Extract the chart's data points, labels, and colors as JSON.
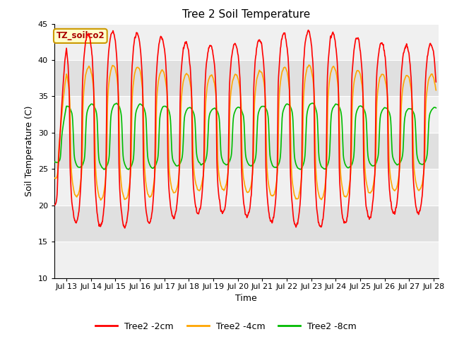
{
  "title": "Tree 2 Soil Temperature",
  "xlabel": "Time",
  "ylabel": "Soil Temperature (C)",
  "ylim": [
    10,
    45
  ],
  "xlim_days": [
    12.5,
    28.2
  ],
  "tick_days": [
    13,
    14,
    15,
    16,
    17,
    18,
    19,
    20,
    21,
    22,
    23,
    24,
    25,
    26,
    27,
    28
  ],
  "tick_labels": [
    "Jul 13",
    "Jul 14",
    "Jul 15",
    "Jul 16",
    "Jul 17",
    "Jul 18",
    "Jul 19",
    "Jul 20",
    "Jul 21",
    "Jul 22",
    "Jul 23",
    "Jul 24",
    "Jul 25",
    "Jul 26",
    "Jul 27",
    "Jul 28"
  ],
  "yticks": [
    10,
    15,
    20,
    25,
    30,
    35,
    40,
    45
  ],
  "color_2cm": "#FF0000",
  "color_4cm": "#FFA500",
  "color_8cm": "#00BB00",
  "legend_label_2cm": "Tree2 -2cm",
  "legend_label_4cm": "Tree2 -4cm",
  "legend_label_8cm": "Tree2 -8cm",
  "annotation_text": "TZ_soilco2",
  "annotation_color": "#AA0000",
  "annotation_bg": "#FFFFCC",
  "annotation_border": "#CC9900",
  "plot_bg_light": "#F0F0F0",
  "plot_bg_dark": "#E0E0E0",
  "line_width": 1.2,
  "title_fontsize": 11
}
